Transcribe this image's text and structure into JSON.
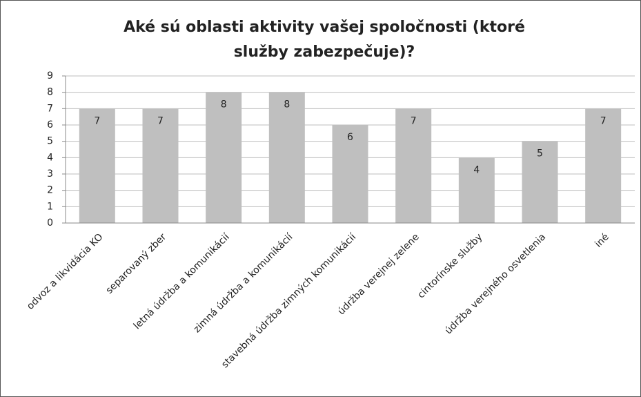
{
  "chart_data": {
    "type": "bar",
    "title": "Aké sú oblasti aktivity vašej spoločnosti (ktoré služby zabezpečuje)?",
    "categories": [
      "odvoz a likvidácia KO",
      "separovaný zber",
      "letná údržba a komunikácií",
      "zimná údržba a komunikácií",
      "stavebná údržba zimných komunikácií",
      "údržba verejnej zelene",
      "cintorínske služby",
      "údržba verejného osvetlenia",
      "iné"
    ],
    "values": [
      7,
      7,
      8,
      8,
      6,
      7,
      4,
      5,
      7
    ],
    "color": "#bfbfbf",
    "ylim": [
      0,
      9
    ],
    "yticks": [
      0,
      1,
      2,
      3,
      4,
      5,
      6,
      7,
      8,
      9
    ],
    "grid": true
  }
}
